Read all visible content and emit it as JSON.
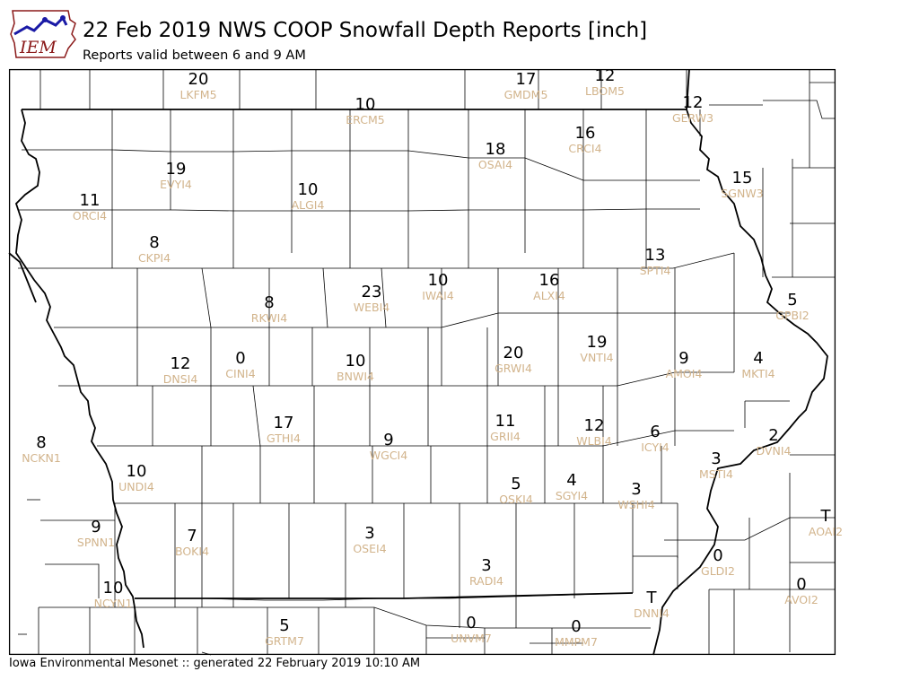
{
  "header": {
    "logo_text": "IEM",
    "title": "22 Feb 2019 NWS COOP Snowfall Depth Reports [inch]",
    "subtitle": "Reports valid between 6 and 9 AM"
  },
  "footer": {
    "text": "Iowa Environmental Mesonet :: generated 22 February 2019 10:10 AM"
  },
  "colors": {
    "value_text": "#000000",
    "station_text": "#d2b48c",
    "logo_blue": "#1a1aa6",
    "logo_red": "#8b1a1a"
  },
  "stations": [
    {
      "id": "LKFM5",
      "value": "20"
    },
    {
      "id": "GMDM5",
      "value": "17"
    },
    {
      "id": "LBOM5",
      "value": "12"
    },
    {
      "id": "ERCM5",
      "value": "10"
    },
    {
      "id": "GERW3",
      "value": "12"
    },
    {
      "id": "CRCI4",
      "value": "16"
    },
    {
      "id": "OSAI4",
      "value": "18"
    },
    {
      "id": "EVYI4",
      "value": "19"
    },
    {
      "id": "SGNW3",
      "value": "15"
    },
    {
      "id": "ORCI4",
      "value": "11"
    },
    {
      "id": "ALGI4",
      "value": "10"
    },
    {
      "id": "CKPI4",
      "value": "8"
    },
    {
      "id": "SPTI4",
      "value": "13"
    },
    {
      "id": "ALXI4",
      "value": "16"
    },
    {
      "id": "WEBI4",
      "value": "23"
    },
    {
      "id": "IWAI4",
      "value": "10"
    },
    {
      "id": "RKWI4",
      "value": "8"
    },
    {
      "id": "GPBI2",
      "value": "5"
    },
    {
      "id": "VNTI4",
      "value": "19"
    },
    {
      "id": "GRWI4",
      "value": "20"
    },
    {
      "id": "DNSI4",
      "value": "12"
    },
    {
      "id": "CINI4",
      "value": "0"
    },
    {
      "id": "BNWI4",
      "value": "10"
    },
    {
      "id": "AMOI4",
      "value": "9"
    },
    {
      "id": "MKTI4",
      "value": "4"
    },
    {
      "id": "GTHI4",
      "value": "17"
    },
    {
      "id": "GRII4",
      "value": "11"
    },
    {
      "id": "WLBI4",
      "value": "12"
    },
    {
      "id": "ICYI4",
      "value": "6"
    },
    {
      "id": "DVNI4",
      "value": "2"
    },
    {
      "id": "NCKN1",
      "value": "8"
    },
    {
      "id": "WGCI4",
      "value": "9"
    },
    {
      "id": "MSTI4",
      "value": "3"
    },
    {
      "id": "UNDI4",
      "value": "10"
    },
    {
      "id": "OSKI4",
      "value": "5"
    },
    {
      "id": "SGYI4",
      "value": "4"
    },
    {
      "id": "WSHI4",
      "value": "3"
    },
    {
      "id": "AOAI2",
      "value": "T"
    },
    {
      "id": "SPNN1",
      "value": "9"
    },
    {
      "id": "BOKI4",
      "value": "7"
    },
    {
      "id": "OSEI4",
      "value": "3"
    },
    {
      "id": "GLDI2",
      "value": "0"
    },
    {
      "id": "RADI4",
      "value": "3"
    },
    {
      "id": "AVOI2",
      "value": "0"
    },
    {
      "id": "NCYN1",
      "value": "10"
    },
    {
      "id": "DNNI4",
      "value": "T"
    },
    {
      "id": "GRTM7",
      "value": "5"
    },
    {
      "id": "UNVM7",
      "value": "0"
    },
    {
      "id": "MMPM7",
      "value": "0"
    }
  ]
}
